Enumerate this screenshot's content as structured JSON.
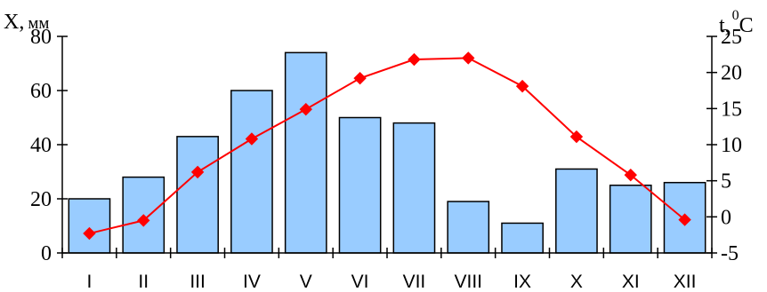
{
  "chart_data": {
    "type": "bar",
    "categories": [
      "I",
      "II",
      "III",
      "IV",
      "V",
      "VI",
      "VII",
      "VIII",
      "IX",
      "X",
      "XI",
      "XII"
    ],
    "series": [
      {
        "values": [
          20,
          28,
          43,
          60,
          74,
          50,
          48,
          19,
          11,
          31,
          25,
          26
        ],
        "kind": "bar",
        "axis": "left",
        "color": "#99ccff"
      },
      {
        "values": [
          -2.3,
          -0.5,
          6.2,
          10.8,
          14.9,
          19.2,
          21.8,
          22.0,
          18.1,
          11.1,
          5.8,
          -0.4
        ],
        "kind": "line",
        "axis": "right",
        "color": "#ff0000"
      }
    ],
    "left_axis": {
      "label_main": "X,",
      "label_unit": "мм",
      "ylim": [
        0,
        80
      ],
      "ticks": [
        "0",
        "20",
        "40",
        "60",
        "80"
      ]
    },
    "right_axis": {
      "label_main": "t,",
      "label_sup": "0",
      "label_unit": "C",
      "ylim": [
        -5,
        25
      ],
      "ticks": [
        "-5",
        "0",
        "5",
        "10",
        "15",
        "20",
        "25"
      ]
    },
    "grid": false,
    "legend": "none"
  }
}
